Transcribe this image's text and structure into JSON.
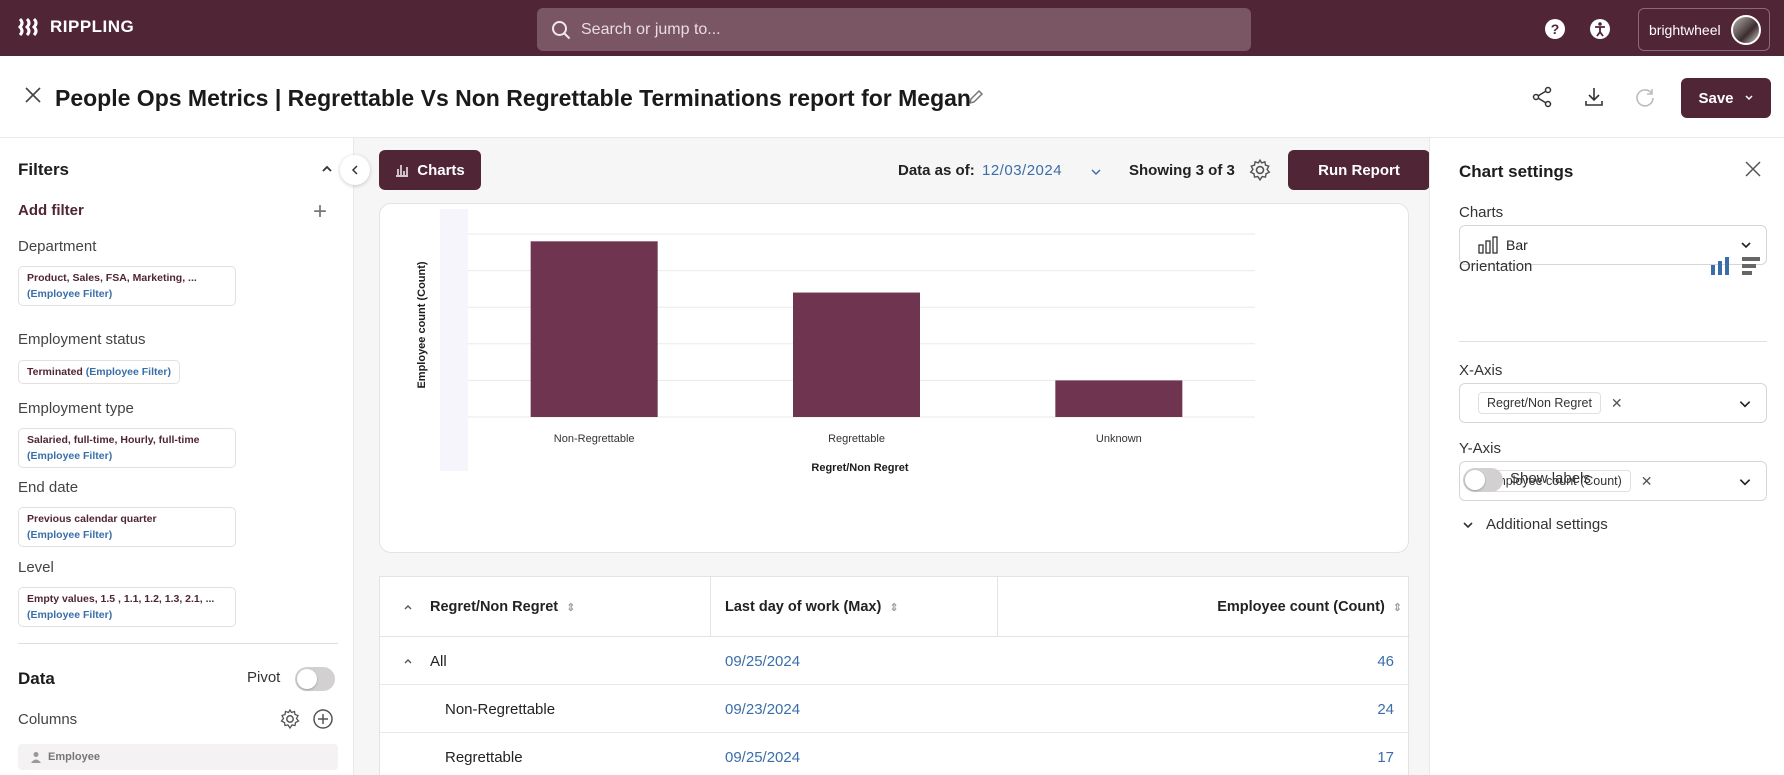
{
  "topbar": {
    "logo_text": "RIPPLING",
    "search_placeholder": "Search or jump to...",
    "account_name": "brightwheel"
  },
  "title": {
    "text": "People Ops Metrics | Regrettable Vs Non Regrettable Terminations report for Megan",
    "save_label": "Save"
  },
  "filters": {
    "heading": "Filters",
    "add_filter": "Add filter",
    "items": [
      {
        "label": "Department",
        "value": "Product, Sales, FSA, Marketing, ...",
        "tag": "(Employee Filter)"
      },
      {
        "label": "Employment status",
        "value": "Terminated",
        "tag": "(Employee Filter)"
      },
      {
        "label": "Employment type",
        "value": "Salaried, full-time, Hourly, full-time",
        "tag": "(Employee Filter)"
      },
      {
        "label": "End date",
        "value": "Previous calendar quarter",
        "tag": "(Employee Filter)"
      },
      {
        "label": "Level",
        "value": "Empty values, 1.5 , 1.1, 1.2, 1.3, 2.1, ...",
        "tag": "(Employee Filter)"
      }
    ]
  },
  "data_section": {
    "heading": "Data",
    "pivot_label": "Pivot",
    "columns_label": "Columns",
    "employee_label": "Employee"
  },
  "toolbar": {
    "charts_label": "Charts",
    "data_as_of_label": "Data as of:",
    "data_as_of_value": "12/03/2024",
    "showing": "Showing 3 of 3",
    "run_report": "Run Report"
  },
  "chart_data": {
    "type": "bar",
    "categories": [
      "Non-Regrettable",
      "Regrettable",
      "Unknown"
    ],
    "values": [
      24,
      17,
      5
    ],
    "xlabel": "Regret/Non Regret",
    "ylabel": "Employee count (Count)",
    "ylim": [
      0,
      25
    ],
    "color": "#6e3450",
    "grid": true
  },
  "table": {
    "headers": [
      "Regret/Non Regret",
      "Last day of work (Max)",
      "Employee count (Count)"
    ],
    "rows": [
      {
        "label": "All",
        "date": "09/25/2024",
        "count": "46"
      },
      {
        "label": "Non-Regrettable",
        "date": "09/23/2024",
        "count": "24"
      },
      {
        "label": "Regrettable",
        "date": "09/25/2024",
        "count": "17"
      }
    ]
  },
  "chart_settings": {
    "heading": "Chart settings",
    "charts_label": "Charts",
    "chart_type": "Bar",
    "orientation_label": "Orientation",
    "x_axis_label": "X-Axis",
    "x_axis_value": "Regret/Non Regret",
    "y_axis_label": "Y-Axis",
    "y_axis_value": "Employee count (Count)",
    "show_labels": "Show labels",
    "additional_settings": "Additional settings"
  },
  "colors": {
    "brand": "#502535",
    "bar": "#6e3450",
    "link": "#3a6ea8"
  }
}
